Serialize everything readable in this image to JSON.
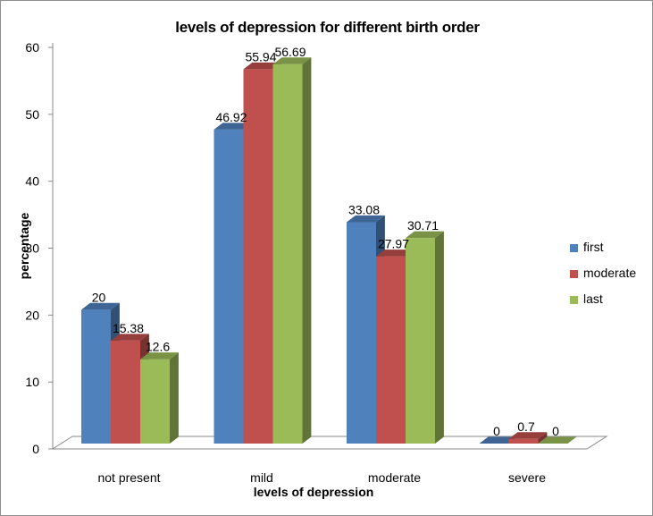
{
  "chart_data": {
    "type": "bar",
    "title": "levels of depression for different birth order",
    "xlabel": "levels of depression",
    "ylabel": "percentage",
    "ylim": [
      0,
      60
    ],
    "yticks": [
      "0",
      "10",
      "20",
      "30",
      "40",
      "50",
      "60"
    ],
    "categories": [
      "not present",
      "mild",
      "moderate",
      "severe"
    ],
    "series": [
      {
        "name": "first",
        "values": [
          20,
          46.92,
          33.08,
          0
        ],
        "labels": [
          "20",
          "46.92",
          "33.08",
          "0"
        ],
        "color": "#4F81BD"
      },
      {
        "name": "moderate",
        "values": [
          15.38,
          55.94,
          27.97,
          0.7
        ],
        "labels": [
          "15.38",
          "55.94",
          "27.97",
          "0.7"
        ],
        "color": "#C0504D"
      },
      {
        "name": "last",
        "values": [
          12.6,
          56.69,
          30.71,
          0
        ],
        "labels": [
          "12.6",
          "56.69",
          "30.71",
          "0"
        ],
        "color": "#9BBB59"
      }
    ],
    "legend_position": "right",
    "style": "3d-clustered-column"
  }
}
